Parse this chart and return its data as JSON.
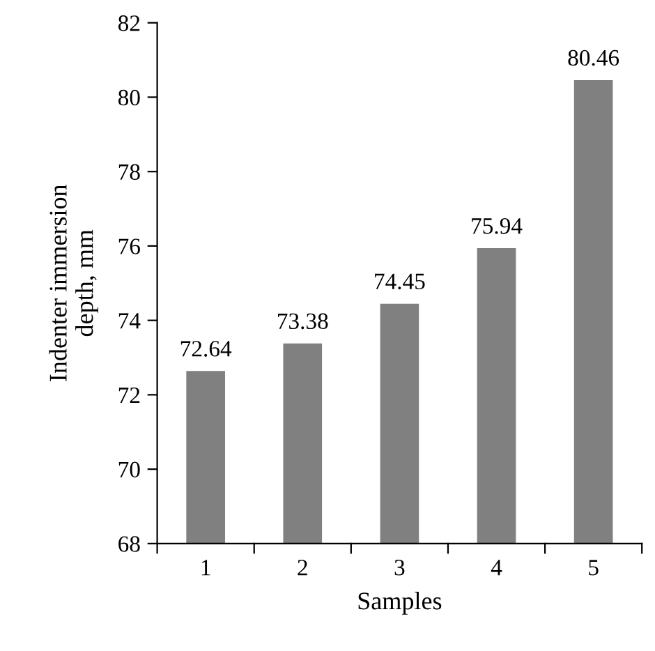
{
  "chart_data": {
    "type": "bar",
    "xlabel": "Samples",
    "ylabel": "Indenter immersion depth, mm",
    "categories": [
      "1",
      "2",
      "3",
      "4",
      "5"
    ],
    "values": [
      72.64,
      73.38,
      74.45,
      75.94,
      80.46
    ],
    "color": "#808080",
    "ylim": [
      68,
      82
    ],
    "yticks": [
      68,
      70,
      72,
      74,
      76,
      78,
      80,
      82
    ],
    "data_labels": true,
    "grid": false
  }
}
